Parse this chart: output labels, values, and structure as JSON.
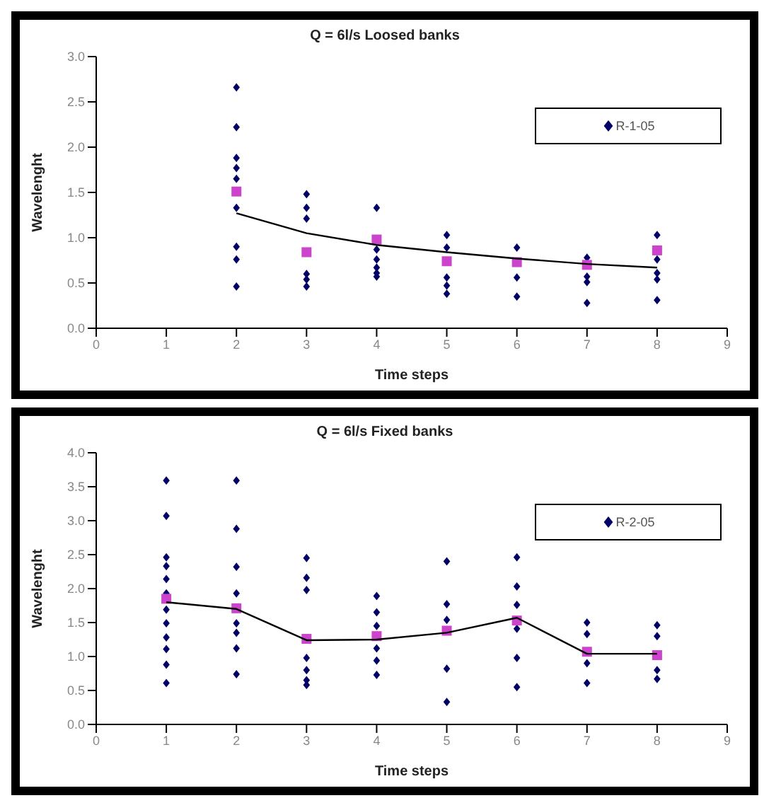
{
  "chart_data": [
    {
      "type": "scatter",
      "title": "Q = 6l/s Loosed banks",
      "xlabel": "Time steps",
      "ylabel": "Wavelenght",
      "xlim": [
        0,
        9
      ],
      "xticks": [
        0,
        1,
        2,
        3,
        4,
        5,
        6,
        7,
        8,
        9
      ],
      "ylim": [
        0,
        3
      ],
      "yticks": [
        {
          "value": 0,
          "label": "0.0"
        },
        {
          "value": 0.5,
          "label": "0.5"
        },
        {
          "value": 1,
          "label": "1.0"
        },
        {
          "value": 1.5,
          "label": "1.5"
        },
        {
          "value": 2,
          "label": "2.0"
        },
        {
          "value": 2.5,
          "label": "2.5"
        },
        {
          "value": 3,
          "label": "3.0"
        }
      ],
      "legend": "top right",
      "grid": false,
      "series": [
        {
          "name": "R-1-05",
          "marker": "diamond",
          "color": "#000066",
          "x": [
            2,
            2,
            2,
            2,
            2,
            2,
            2,
            2,
            2,
            3,
            3,
            3,
            3,
            3,
            3,
            4,
            4,
            4,
            4,
            4,
            4,
            5,
            5,
            5,
            5,
            5,
            6,
            6,
            6,
            7,
            7,
            7,
            7,
            8,
            8,
            8,
            8,
            8
          ],
          "values": [
            2.66,
            2.22,
            1.88,
            1.77,
            1.65,
            1.33,
            0.9,
            0.76,
            0.46,
            1.48,
            1.33,
            1.21,
            0.6,
            0.54,
            0.46,
            1.33,
            0.87,
            0.76,
            0.67,
            0.61,
            0.57,
            1.03,
            0.89,
            0.56,
            0.47,
            0.38,
            0.89,
            0.56,
            0.35,
            0.78,
            0.57,
            0.51,
            0.28,
            1.03,
            0.76,
            0.61,
            0.54,
            0.31
          ]
        },
        {
          "type": "scatter",
          "marker": "square",
          "color": "#cc44cc",
          "x": [
            2,
            3,
            4,
            5,
            6,
            7,
            8
          ],
          "values": [
            1.51,
            0.84,
            0.98,
            0.74,
            0.73,
            0.7,
            0.86
          ]
        },
        {
          "type": "line",
          "marker": "none",
          "color": "#000000",
          "x": [
            2,
            3,
            4,
            5,
            6,
            7,
            8
          ],
          "values": [
            1.27,
            1.05,
            0.92,
            0.84,
            0.77,
            0.71,
            0.67
          ]
        }
      ]
    },
    {
      "type": "scatter",
      "title": "Q = 6l/s Fixed banks",
      "xlabel": "Time steps",
      "ylabel": "Wavelenght",
      "xlim": [
        0,
        9
      ],
      "xticks": [
        0,
        1,
        2,
        3,
        4,
        5,
        6,
        7,
        8,
        9
      ],
      "ylim": [
        0,
        4
      ],
      "yticks": [
        {
          "value": 0,
          "label": "0.0"
        },
        {
          "value": 0.5,
          "label": "0.5"
        },
        {
          "value": 1,
          "label": "1.0"
        },
        {
          "value": 1.5,
          "label": "1.5"
        },
        {
          "value": 2,
          "label": "2.0"
        },
        {
          "value": 2.5,
          "label": "2.5"
        },
        {
          "value": 3,
          "label": "3.0"
        },
        {
          "value": 3.5,
          "label": "3.5"
        },
        {
          "value": 4,
          "label": "4.0"
        }
      ],
      "legend": "top right",
      "grid": false,
      "series": [
        {
          "name": "R-2-05",
          "marker": "diamond",
          "color": "#000066",
          "x": [
            1,
            1,
            1,
            1,
            1,
            1,
            1,
            1,
            1,
            1,
            1,
            1,
            2,
            2,
            2,
            2,
            2,
            2,
            2,
            2,
            3,
            3,
            3,
            3,
            3,
            3,
            3,
            4,
            4,
            4,
            4,
            4,
            4,
            5,
            5,
            5,
            5,
            5,
            6,
            6,
            6,
            6,
            6,
            6,
            7,
            7,
            7,
            7,
            8,
            8,
            8,
            8
          ],
          "values": [
            3.59,
            3.07,
            2.46,
            2.33,
            2.14,
            1.93,
            1.69,
            1.49,
            1.28,
            1.11,
            0.88,
            0.61,
            3.59,
            2.88,
            2.32,
            1.93,
            1.49,
            1.35,
            1.12,
            0.74,
            2.45,
            2.16,
            1.98,
            0.98,
            0.8,
            0.65,
            0.58,
            1.89,
            1.65,
            1.45,
            1.12,
            0.94,
            0.73,
            2.4,
            1.77,
            1.54,
            0.82,
            0.33,
            2.46,
            2.03,
            1.76,
            1.41,
            0.98,
            0.55,
            1.5,
            1.33,
            0.9,
            0.61,
            1.46,
            1.3,
            0.8,
            0.67
          ]
        },
        {
          "type": "scatter",
          "marker": "square",
          "color": "#cc44cc",
          "x": [
            1,
            2,
            3,
            4,
            5,
            6,
            7,
            8
          ],
          "values": [
            1.85,
            1.71,
            1.26,
            1.3,
            1.38,
            1.53,
            1.07,
            1.02
          ]
        },
        {
          "type": "line",
          "marker": "none",
          "color": "#000000",
          "x": [
            1,
            2,
            3,
            4,
            5,
            6,
            7,
            8
          ],
          "values": [
            1.8,
            1.7,
            1.24,
            1.25,
            1.35,
            1.57,
            1.04,
            1.04
          ]
        }
      ]
    }
  ]
}
